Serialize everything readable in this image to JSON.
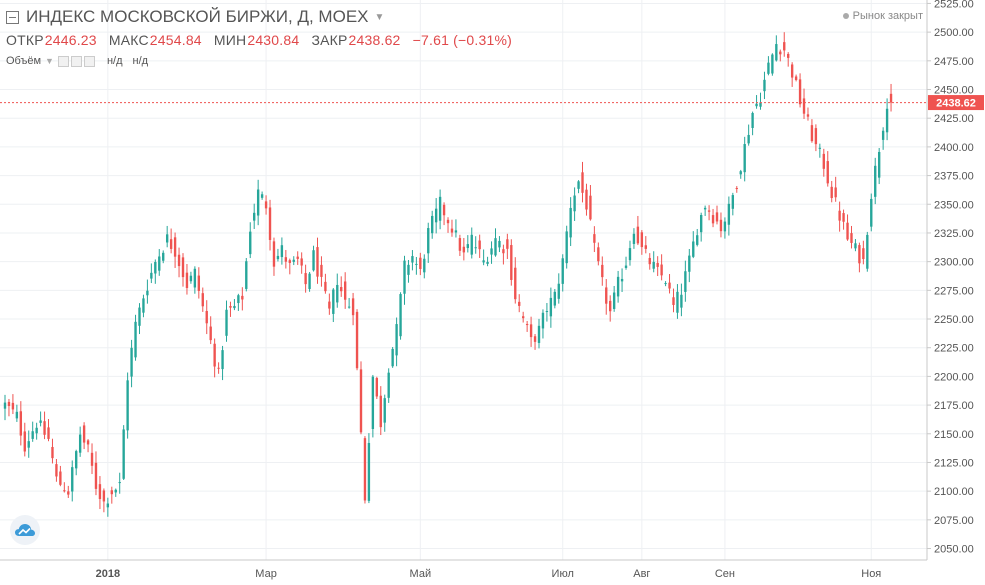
{
  "header": {
    "title": "ИНДЕКС МОСКОВСКОЙ БИРЖИ, Д, MOEX",
    "ohlc": {
      "open_label": "ОТКР",
      "open": "2446.23",
      "high_label": "МАКС",
      "high": "2454.84",
      "low_label": "МИН",
      "low": "2430.84",
      "close_label": "ЗАКР",
      "close": "2438.62",
      "change": "−7.61 (−0.31%)"
    },
    "volume_label": "Объём",
    "volume_value_1": "н/д",
    "volume_value_2": "н/д",
    "market_status": "Рынок закрыт"
  },
  "colors": {
    "up": "#26a69a",
    "down": "#ef5350",
    "price_tag": "#ef5350"
  },
  "icons": {
    "logo": "tradingview-cloud-icon",
    "title_box": "collapse-square-icon"
  },
  "chart_data": {
    "type": "candlestick",
    "title": "ИНДЕКС МОСКОВСКОЙ БИРЖИ, Д, MOEX",
    "y_axis": {
      "range": [
        2040,
        2528
      ],
      "ticks": [
        "2050.00",
        "2075.00",
        "2100.00",
        "2125.00",
        "2150.00",
        "2175.00",
        "2200.00",
        "2225.00",
        "2250.00",
        "2275.00",
        "2300.00",
        "2325.00",
        "2350.00",
        "2375.00",
        "2400.00",
        "2425.00",
        "2450.00",
        "2475.00",
        "2500.00",
        "2525.00"
      ],
      "position": "right"
    },
    "x_axis": {
      "labels": [
        {
          "label": "2018",
          "index": 26
        },
        {
          "label": "Мар",
          "index": 66
        },
        {
          "label": "Май",
          "index": 105
        },
        {
          "label": "Июл",
          "index": 141
        },
        {
          "label": "Авг",
          "index": 161
        },
        {
          "label": "Сен",
          "index": 182
        },
        {
          "label": "Ноя",
          "index": 219
        }
      ]
    },
    "last_price": 2438.62,
    "grid": true,
    "legend": "top-left",
    "anchors": [
      [
        0,
        2175
      ],
      [
        3,
        2165
      ],
      [
        5,
        2140
      ],
      [
        8,
        2160
      ],
      [
        11,
        2145
      ],
      [
        13,
        2110
      ],
      [
        16,
        2100
      ],
      [
        19,
        2150
      ],
      [
        21,
        2135
      ],
      [
        23,
        2105
      ],
      [
        25,
        2090
      ],
      [
        27,
        2100
      ],
      [
        29,
        2105
      ],
      [
        31,
        2200
      ],
      [
        33,
        2245
      ],
      [
        35,
        2270
      ],
      [
        38,
        2300
      ],
      [
        41,
        2320
      ],
      [
        43,
        2310
      ],
      [
        46,
        2280
      ],
      [
        48,
        2290
      ],
      [
        50,
        2260
      ],
      [
        52,
        2230
      ],
      [
        54,
        2200
      ],
      [
        56,
        2255
      ],
      [
        58,
        2260
      ],
      [
        60,
        2270
      ],
      [
        62,
        2330
      ],
      [
        64,
        2360
      ],
      [
        66,
        2350
      ],
      [
        68,
        2300
      ],
      [
        70,
        2310
      ],
      [
        72,
        2295
      ],
      [
        74,
        2300
      ],
      [
        76,
        2280
      ],
      [
        78,
        2305
      ],
      [
        80,
        2280
      ],
      [
        82,
        2255
      ],
      [
        84,
        2285
      ],
      [
        86,
        2265
      ],
      [
        88,
        2260
      ],
      [
        90,
        2150
      ],
      [
        91,
        2095
      ],
      [
        93,
        2200
      ],
      [
        95,
        2160
      ],
      [
        97,
        2210
      ],
      [
        99,
        2240
      ],
      [
        101,
        2295
      ],
      [
        103,
        2305
      ],
      [
        105,
        2290
      ],
      [
        107,
        2325
      ],
      [
        110,
        2350
      ],
      [
        113,
        2330
      ],
      [
        116,
        2305
      ],
      [
        118,
        2320
      ],
      [
        121,
        2300
      ],
      [
        124,
        2320
      ],
      [
        127,
        2310
      ],
      [
        129,
        2270
      ],
      [
        131,
        2250
      ],
      [
        133,
        2230
      ],
      [
        135,
        2240
      ],
      [
        137,
        2260
      ],
      [
        139,
        2270
      ],
      [
        141,
        2300
      ],
      [
        143,
        2350
      ],
      [
        145,
        2370
      ],
      [
        147,
        2350
      ],
      [
        149,
        2310
      ],
      [
        151,
        2280
      ],
      [
        153,
        2255
      ],
      [
        155,
        2280
      ],
      [
        157,
        2300
      ],
      [
        159,
        2330
      ],
      [
        161,
        2310
      ],
      [
        163,
        2300
      ],
      [
        165,
        2290
      ],
      [
        167,
        2285
      ],
      [
        169,
        2260
      ],
      [
        171,
        2275
      ],
      [
        173,
        2300
      ],
      [
        175,
        2330
      ],
      [
        177,
        2350
      ],
      [
        179,
        2340
      ],
      [
        181,
        2330
      ],
      [
        183,
        2345
      ],
      [
        185,
        2370
      ],
      [
        187,
        2400
      ],
      [
        189,
        2430
      ],
      [
        191,
        2445
      ],
      [
        193,
        2470
      ],
      [
        195,
        2490
      ],
      [
        197,
        2485
      ],
      [
        199,
        2465
      ],
      [
        201,
        2440
      ],
      [
        203,
        2420
      ],
      [
        205,
        2400
      ],
      [
        207,
        2385
      ],
      [
        209,
        2360
      ],
      [
        211,
        2340
      ],
      [
        213,
        2320
      ],
      [
        215,
        2310
      ],
      [
        217,
        2300
      ],
      [
        219,
        2360
      ],
      [
        221,
        2400
      ],
      [
        223,
        2440
      ],
      [
        224,
        2438.62
      ]
    ]
  }
}
